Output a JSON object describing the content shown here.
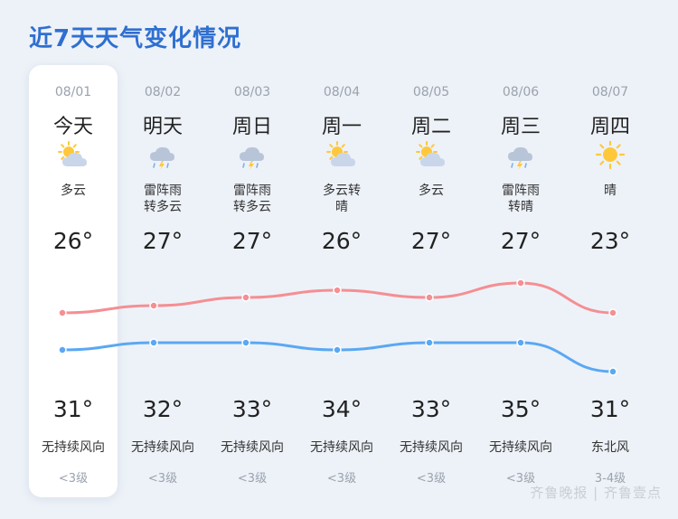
{
  "title": "近7天天气变化情况",
  "colors": {
    "high_line": "#f48f93",
    "low_line": "#5aa8f3",
    "accent": "#2f6fd0"
  },
  "days": [
    {
      "date": "08/01",
      "day": "今天",
      "icon": "partly-cloudy-icon",
      "cond1": "多云",
      "cond2": "",
      "high": "26°",
      "low": "31°",
      "wind": "无持续风向",
      "level": "<3级",
      "line_high": 26,
      "line_low": 31
    },
    {
      "date": "08/02",
      "day": "明天",
      "icon": "thunder-rain-icon",
      "cond1": "雷阵雨",
      "cond2": "转多云",
      "high": "27°",
      "low": "32°",
      "wind": "无持续风向",
      "level": "<3级",
      "line_high": 27,
      "line_low": 32
    },
    {
      "date": "08/03",
      "day": "周日",
      "icon": "thunder-rain-icon",
      "cond1": "雷阵雨",
      "cond2": "转多云",
      "high": "27°",
      "low": "33°",
      "wind": "无持续风向",
      "level": "<3级",
      "line_high": 27,
      "line_low": 33
    },
    {
      "date": "08/04",
      "day": "周一",
      "icon": "partly-cloudy-icon",
      "cond1": "多云转",
      "cond2": "晴",
      "high": "26°",
      "low": "34°",
      "wind": "无持续风向",
      "level": "<3级",
      "line_high": 26,
      "line_low": 34
    },
    {
      "date": "08/05",
      "day": "周二",
      "icon": "partly-cloudy-icon",
      "cond1": "多云",
      "cond2": "",
      "high": "27°",
      "low": "33°",
      "wind": "无持续风向",
      "level": "<3级",
      "line_high": 27,
      "line_low": 33
    },
    {
      "date": "08/06",
      "day": "周三",
      "icon": "thunder-rain-icon",
      "cond1": "雷阵雨",
      "cond2": "转晴",
      "high": "27°",
      "low": "35°",
      "wind": "无持续风向",
      "level": "<3级",
      "line_high": 27,
      "line_low": 35
    },
    {
      "date": "08/07",
      "day": "周四",
      "icon": "sunny-icon",
      "cond1": "晴",
      "cond2": "",
      "high": "23°",
      "low": "31°",
      "wind": "东北风",
      "level": "3-4级",
      "line_high": 23,
      "line_low": 31
    }
  ],
  "watermark": "齐鲁晚报 | 齐鲁壹点"
}
